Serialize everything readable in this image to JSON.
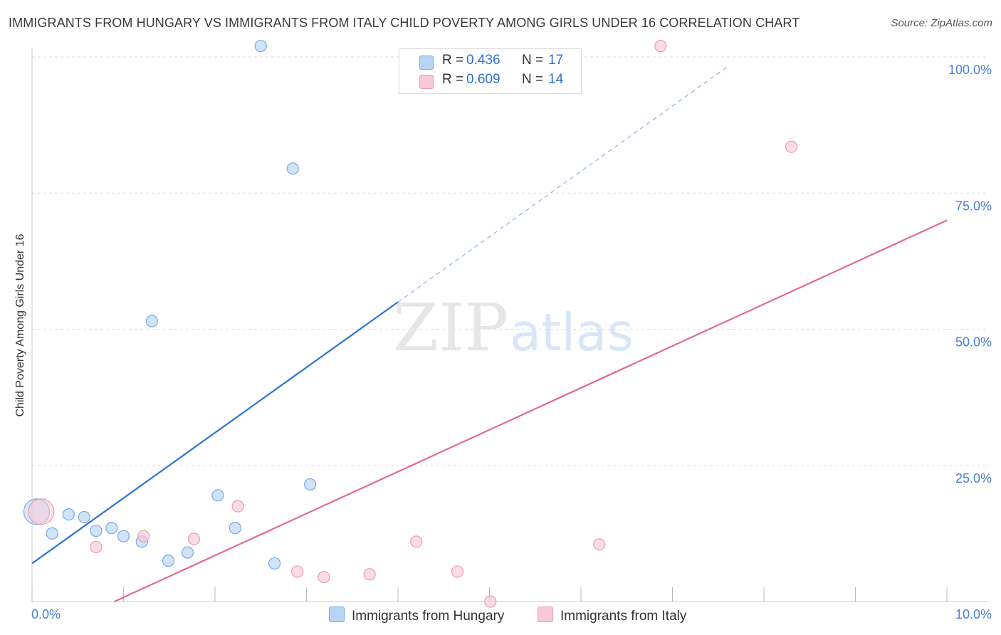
{
  "title": "IMMIGRANTS FROM HUNGARY VS IMMIGRANTS FROM ITALY CHILD POVERTY AMONG GIRLS UNDER 16 CORRELATION CHART",
  "source": "Source: ZipAtlas.com",
  "watermark": {
    "zip": "ZIP",
    "atlas": "atlas"
  },
  "legend": {
    "r_label": "R =",
    "n_label": "N =",
    "hungary": {
      "r": "0.436",
      "n": "17"
    },
    "italy": {
      "r": "0.609",
      "n": "14"
    }
  },
  "colors": {
    "hungary_fill": "#b8d4f5",
    "hungary_stroke": "#7aaae0",
    "hungary_line": "#2b73d2",
    "italy_fill": "#f8c9d7",
    "italy_stroke": "#ee9ab3",
    "italy_line": "#e06a94",
    "tick": "#4a7fd6",
    "grid": "#dddddd"
  },
  "chart_data": {
    "type": "scatter",
    "title": "IMMIGRANTS FROM HUNGARY VS IMMIGRANTS FROM ITALY CHILD POVERTY AMONG GIRLS UNDER 16 CORRELATION CHART",
    "xlabel": "",
    "ylabel": "Child Poverty Among Girls Under 16",
    "xlim": [
      0,
      10
    ],
    "ylim": [
      0,
      100
    ],
    "x_tick_labels": [
      "0.0%",
      "10.0%"
    ],
    "y_tick_labels": [
      "25.0%",
      "50.0%",
      "75.0%",
      "100.0%"
    ],
    "y_ticks": [
      25,
      50,
      75,
      100
    ],
    "grid": true,
    "legend_position": "top-center",
    "series": [
      {
        "name": "Immigrants from Hungary",
        "points": [
          {
            "x": 0.05,
            "y": 16.5,
            "big": true
          },
          {
            "x": 0.22,
            "y": 12.5
          },
          {
            "x": 0.4,
            "y": 16.0
          },
          {
            "x": 0.57,
            "y": 15.5
          },
          {
            "x": 0.7,
            "y": 13.0
          },
          {
            "x": 0.87,
            "y": 13.5
          },
          {
            "x": 1.0,
            "y": 12.0
          },
          {
            "x": 1.2,
            "y": 11.0
          },
          {
            "x": 1.31,
            "y": 51.5
          },
          {
            "x": 1.49,
            "y": 7.5
          },
          {
            "x": 1.7,
            "y": 9.0
          },
          {
            "x": 2.03,
            "y": 19.5
          },
          {
            "x": 2.22,
            "y": 13.5
          },
          {
            "x": 2.5,
            "y": 102.0
          },
          {
            "x": 2.65,
            "y": 7.0
          },
          {
            "x": 2.85,
            "y": 79.5
          },
          {
            "x": 3.04,
            "y": 21.5
          }
        ],
        "trend": {
          "x0": 0.0,
          "y0": 7.0,
          "x1": 4.0,
          "y1": 55.0,
          "dash_to_x": 7.6
        }
      },
      {
        "name": "Immigrants from Italy",
        "points": [
          {
            "x": 0.1,
            "y": 16.5,
            "big": true
          },
          {
            "x": 0.7,
            "y": 10.0
          },
          {
            "x": 1.22,
            "y": 12.0
          },
          {
            "x": 1.77,
            "y": 11.5
          },
          {
            "x": 2.25,
            "y": 17.5
          },
          {
            "x": 2.9,
            "y": 5.5
          },
          {
            "x": 3.19,
            "y": 4.5
          },
          {
            "x": 3.69,
            "y": 5.0
          },
          {
            "x": 4.2,
            "y": 11.0
          },
          {
            "x": 4.65,
            "y": 5.5
          },
          {
            "x": 5.01,
            "y": 0.0
          },
          {
            "x": 6.2,
            "y": 10.5
          },
          {
            "x": 6.87,
            "y": 102.0
          },
          {
            "x": 8.3,
            "y": 83.5
          }
        ],
        "trend": {
          "x0": 0.9,
          "y0": 0.0,
          "x1": 10.0,
          "y1": 70.0
        }
      }
    ]
  },
  "bottom_legend": {
    "hungary": "Immigrants from Hungary",
    "italy": "Immigrants from Italy"
  }
}
